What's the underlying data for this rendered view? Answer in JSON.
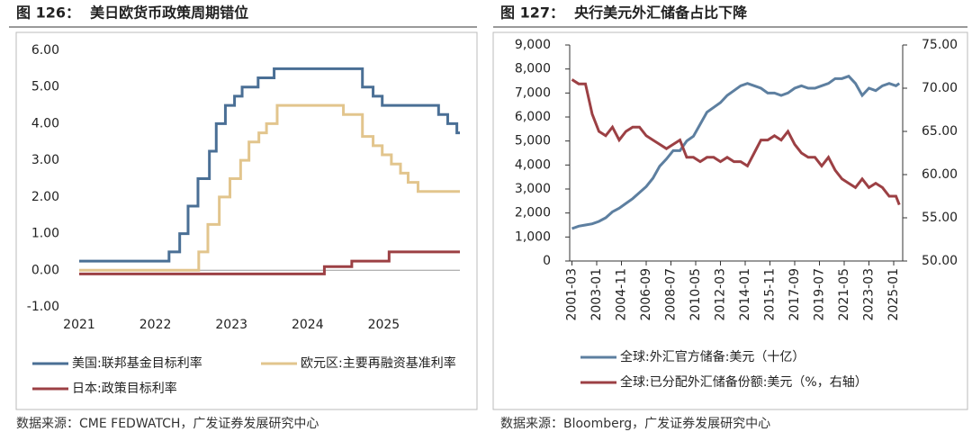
{
  "chart_data": [
    {
      "type": "line",
      "step": true,
      "title": "图 126：  美日欧货币政策周期错位",
      "source": "数据来源：CME FEDWATCH，广发证券发展研究中心",
      "xlim": [
        2021,
        2026
      ],
      "xticks": [
        2021,
        2022,
        2023,
        2024,
        2025
      ],
      "ylim": [
        -1,
        6
      ],
      "yticks": [
        {
          "value": -1,
          "label": "-1.00"
        },
        {
          "value": 0,
          "label": "0.00"
        },
        {
          "value": 1,
          "label": "1.00"
        },
        {
          "value": 2,
          "label": "2.00"
        },
        {
          "value": 3,
          "label": "3.00"
        },
        {
          "value": 4,
          "label": "4.00"
        },
        {
          "value": 5,
          "label": "5.00"
        },
        {
          "value": 6,
          "label": "6.00"
        }
      ],
      "series": [
        {
          "name": "美国:联邦基金目标利率",
          "color": "#4a6f95",
          "x": [
            2021,
            2022.18,
            2022.32,
            2022.43,
            2022.56,
            2022.71,
            2022.8,
            2022.92,
            2023.04,
            2023.14,
            2023.35,
            2023.56,
            2024.72,
            2024.86,
            2024.98,
            2025.72,
            2025.84,
            2025.96
          ],
          "values": [
            0.25,
            0.5,
            1.0,
            1.75,
            2.5,
            3.25,
            4.0,
            4.5,
            4.75,
            5.0,
            5.25,
            5.5,
            5.0,
            4.75,
            4.5,
            4.25,
            4.0,
            3.75
          ]
        },
        {
          "name": "欧元区:主要再融资基准利率",
          "color": "#e2c58d",
          "x": [
            2021,
            2022.57,
            2022.69,
            2022.84,
            2022.98,
            2023.12,
            2023.23,
            2023.36,
            2023.46,
            2023.6,
            2024.47,
            2024.72,
            2024.86,
            2024.98,
            2025.1,
            2025.22,
            2025.32,
            2025.45
          ],
          "values": [
            0,
            0.5,
            1.25,
            2.0,
            2.5,
            3.0,
            3.5,
            3.75,
            4.0,
            4.5,
            4.25,
            3.65,
            3.4,
            3.15,
            2.9,
            2.65,
            2.4,
            2.15
          ]
        },
        {
          "name": "日本:政策目标利率",
          "color": "#9c4044",
          "x": [
            2021,
            2024.22,
            2024.58,
            2025.07
          ],
          "values": [
            -0.1,
            0.1,
            0.25,
            0.5
          ]
        }
      ]
    },
    {
      "type": "line",
      "title": "图 127：  央行美元外汇储备占比下降",
      "source": "数据来源：Bloomberg，广发证券发展研究中心",
      "xlim": [
        "2001-01",
        "2025-09"
      ],
      "xticks": [
        "2001-03",
        "2003-01",
        "2004-11",
        "2006-09",
        "2008-07",
        "2010-05",
        "2012-03",
        "2014-01",
        "2015-11",
        "2017-09",
        "2019-07",
        "2021-05",
        "2023-03",
        "2025-01"
      ],
      "ylim": [
        0,
        9000
      ],
      "yticks": [
        0,
        {
          "value": 1000,
          "label": "1,000"
        },
        {
          "value": 2000,
          "label": "2,000"
        },
        {
          "value": 3000,
          "label": "3,000"
        },
        {
          "value": 4000,
          "label": "4,000"
        },
        {
          "value": 5000,
          "label": "5,000"
        },
        {
          "value": 6000,
          "label": "6,000"
        },
        {
          "value": 7000,
          "label": "7,000"
        },
        {
          "value": 8000,
          "label": "8,000"
        },
        {
          "value": 9000,
          "label": "9,000"
        }
      ],
      "y2lim": [
        50,
        75
      ],
      "y2ticks": [
        {
          "value": 50,
          "label": "50.00"
        },
        {
          "value": 55,
          "label": "55.00"
        },
        {
          "value": 60,
          "label": "60.00"
        },
        {
          "value": 65,
          "label": "65.00"
        },
        {
          "value": 70,
          "label": "70.00"
        },
        {
          "value": 75,
          "label": "75.00"
        }
      ],
      "x": [
        "2001-03",
        "2001-09",
        "2002-03",
        "2002-09",
        "2003-03",
        "2003-09",
        "2004-03",
        "2004-09",
        "2005-03",
        "2005-09",
        "2006-03",
        "2006-09",
        "2007-03",
        "2007-09",
        "2008-03",
        "2008-09",
        "2009-03",
        "2009-09",
        "2010-03",
        "2010-09",
        "2011-03",
        "2011-09",
        "2012-03",
        "2012-09",
        "2013-03",
        "2013-09",
        "2014-03",
        "2014-09",
        "2015-03",
        "2015-09",
        "2016-03",
        "2016-09",
        "2017-03",
        "2017-09",
        "2018-03",
        "2018-09",
        "2019-03",
        "2019-09",
        "2020-03",
        "2020-09",
        "2021-03",
        "2021-09",
        "2022-03",
        "2022-09",
        "2023-03",
        "2023-09",
        "2024-03",
        "2024-09",
        "2025-03",
        "2025-06"
      ],
      "series": [
        {
          "name": "全球:外汇官方储备:美元（十亿）",
          "color": "#5d7fa0",
          "values": [
            1350,
            1450,
            1500,
            1550,
            1650,
            1800,
            2050,
            2200,
            2400,
            2600,
            2850,
            3100,
            3450,
            3950,
            4250,
            4600,
            4600,
            5000,
            5200,
            5700,
            6200,
            6400,
            6600,
            6900,
            7100,
            7300,
            7400,
            7300,
            7200,
            7000,
            7000,
            6900,
            7000,
            7200,
            7300,
            7200,
            7200,
            7300,
            7400,
            7600,
            7600,
            7700,
            7400,
            6900,
            7200,
            7100,
            7300,
            7400,
            7300,
            7400
          ]
        },
        {
          "name": "全球:已分配外汇储备份额:美元（%，右轴）",
          "color": "#9c4044",
          "axis": "y2",
          "values": [
            71.0,
            70.5,
            70.5,
            67.0,
            65.0,
            64.5,
            65.5,
            64.0,
            65.0,
            65.5,
            65.5,
            64.5,
            64.0,
            63.5,
            63.0,
            63.5,
            64.0,
            62.0,
            62.0,
            61.5,
            62.0,
            62.0,
            61.5,
            62.0,
            61.5,
            61.5,
            61.0,
            62.5,
            64.0,
            64.0,
            64.5,
            64.0,
            65.0,
            63.5,
            62.5,
            62.0,
            62.0,
            61.0,
            62.0,
            60.5,
            59.5,
            59.0,
            58.5,
            59.5,
            58.5,
            59.0,
            58.5,
            57.5,
            57.5,
            56.5
          ]
        }
      ]
    }
  ]
}
